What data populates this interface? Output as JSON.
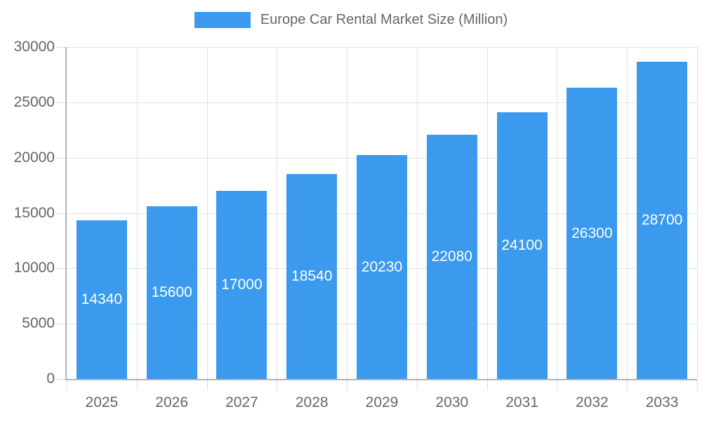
{
  "legend": {
    "items": [
      {
        "label": "Europe Car Rental Market Size (Million)",
        "color": "#3B9AEE"
      }
    ]
  },
  "chart_data": {
    "type": "bar",
    "title": "Europe Car Rental Market Size (Million)",
    "categories": [
      "2025",
      "2026",
      "2027",
      "2028",
      "2029",
      "2030",
      "2031",
      "2032",
      "2033"
    ],
    "series": [
      {
        "name": "Europe Car Rental Market Size (Million)",
        "values": [
          14340,
          15600,
          17000,
          18540,
          20230,
          22080,
          24100,
          26300,
          28700
        ]
      }
    ],
    "values": [
      14340,
      15600,
      17000,
      18540,
      20230,
      22080,
      24100,
      26300,
      28700
    ],
    "value_labels": [
      "14340",
      "15600",
      "17000",
      "18540",
      "20230",
      "22080",
      "24100",
      "26300",
      "28700"
    ],
    "xlabel": "",
    "ylabel": "",
    "ylim": [
      0,
      30000
    ],
    "yticks": [
      0,
      5000,
      10000,
      15000,
      20000,
      25000,
      30000
    ],
    "grid": true,
    "legend_position": "top-center",
    "colors": {
      "bar": "#3B9AEE",
      "value_label_text": "#ffffff",
      "axis_text": "#666666",
      "gridline": "#e3e3e3",
      "tick": "#dedede",
      "axis_line": "#b4b4b4",
      "background": "#ffffff"
    }
  }
}
